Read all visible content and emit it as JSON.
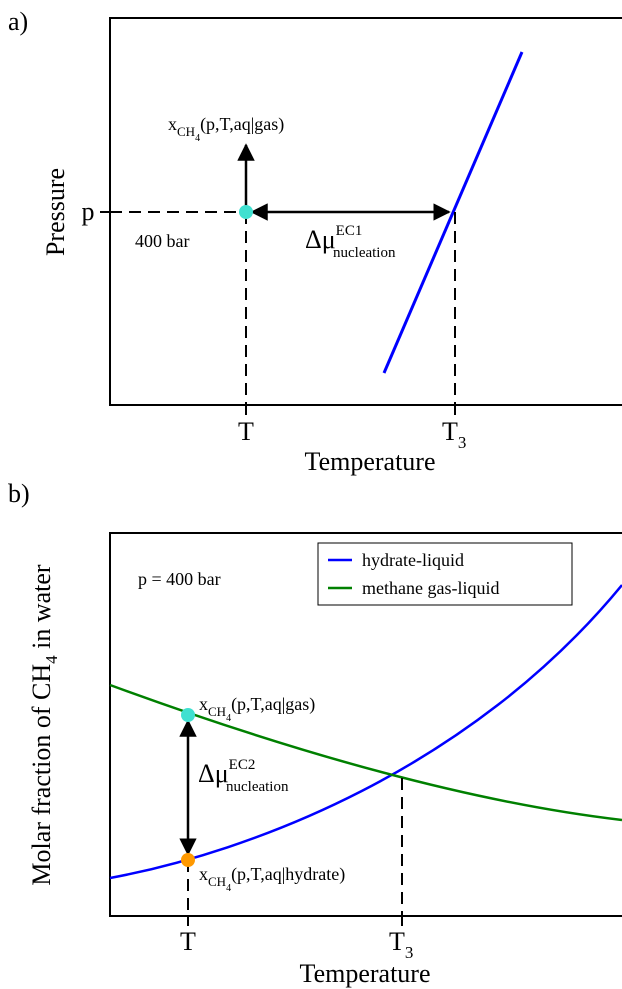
{
  "panel_a": {
    "label": "a)",
    "y_label": "Pressure",
    "x_label": "Temperature",
    "y_tick": "p",
    "x_tick_T": "T",
    "x_tick_T3": {
      "base": "T",
      "sub": "3"
    },
    "note": "400 bar",
    "x_gas": {
      "base": "x",
      "sub": "CH",
      "subsub": "4",
      "args": "(p,T,aq|gas)"
    },
    "delta_mu": {
      "base": "Δμ",
      "sup": "EC1",
      "sub": "nucleation"
    },
    "line_color": "#0000ff",
    "point_color": "#40e0d0"
  },
  "panel_b": {
    "label": "b)",
    "y_label": {
      "text": "Molar fraction of CH",
      "sub": "4",
      "rest": " in water"
    },
    "x_label": "Temperature",
    "x_tick_T": "T",
    "x_tick_T3": {
      "base": "T",
      "sub": "3"
    },
    "condition": "p = 400 bar",
    "legend": [
      {
        "name": "hydrate-liquid",
        "color": "#0000ff"
      },
      {
        "name": "methane gas-liquid",
        "color": "#008000"
      }
    ],
    "x_gas": {
      "base": "x",
      "sub": "CH",
      "subsub": "4",
      "args": "(p,T,aq|gas)"
    },
    "x_hydrate": {
      "base": "x",
      "sub": "CH",
      "subsub": "4",
      "args": "(p,T,aq|hydrate)"
    },
    "delta_mu": {
      "base": "Δμ",
      "sup": "EC2",
      "sub": "nucleation"
    },
    "gas_point_color": "#40e0d0",
    "hydrate_point_color": "#ff9900"
  }
}
